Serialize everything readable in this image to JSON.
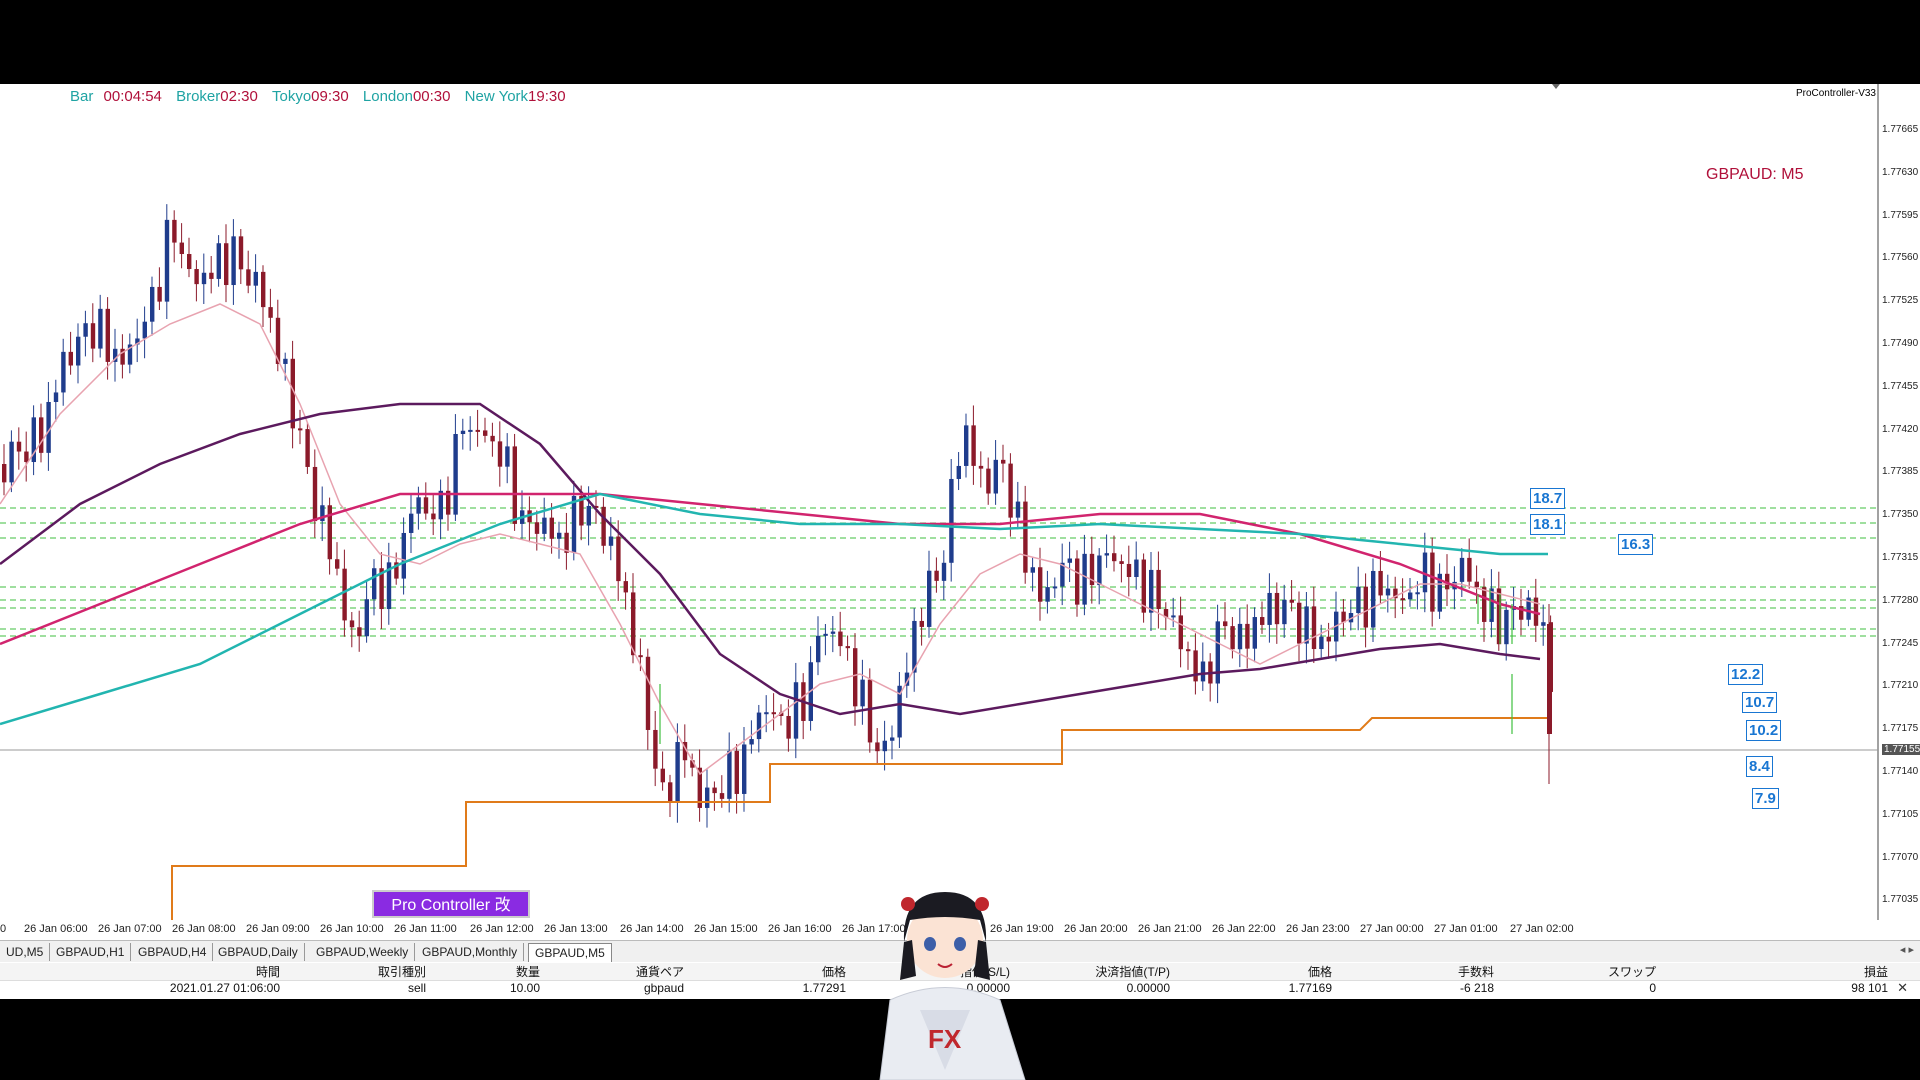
{
  "topbar": {
    "bar_label": "Bar",
    "bar_value": "00:04:54",
    "broker_label": "Broker",
    "broker_value": "02:30",
    "tokyo_label": "Tokyo",
    "tokyo_value": "09:30",
    "london_label": "London",
    "london_value": "00:30",
    "newyork_label": "New York",
    "newyork_value": "19:30"
  },
  "indicator_tag": "ProController-V33",
  "symbol_label": "GBPAUD: M5",
  "pro_controller_button": "Pro Controller 改",
  "pip_boxes": [
    "18.7",
    "18.1",
    "16.3",
    "12.2",
    "10.7",
    "10.2",
    "8.4",
    "7.9"
  ],
  "price_axis": [
    "1.77665",
    "1.77630",
    "1.77595",
    "1.77560",
    "1.77525",
    "1.77490",
    "1.77455",
    "1.77420",
    "1.77385",
    "1.77350",
    "1.77315",
    "1.77280",
    "1.77245",
    "1.77210",
    "1.77175",
    "1.77155",
    "1.77140",
    "1.77105",
    "1.77070",
    "1.77035"
  ],
  "current_price": "1.77155",
  "time_axis": [
    "0",
    "26 Jan 06:00",
    "26 Jan 07:00",
    "26 Jan 08:00",
    "26 Jan 09:00",
    "26 Jan 10:00",
    "26 Jan 11:00",
    "26 Jan 12:00",
    "26 Jan 13:00",
    "26 Jan 14:00",
    "26 Jan 15:00",
    "26 Jan 16:00",
    "26 Jan 17:00",
    "26 Jan 19:00",
    "26 Jan 20:00",
    "26 Jan 21:00",
    "26 Jan 22:00",
    "26 Jan 23:00",
    "27 Jan 00:00",
    "27 Jan 01:00",
    "27 Jan 02:00"
  ],
  "tabs": [
    "UD,M5",
    "GBPAUD,H1",
    "GBPAUD,H4",
    "GBPAUD,Daily",
    "GBPAUD,Weekly",
    "GBPAUD,Monthly",
    "GBPAUD,M5"
  ],
  "active_tab": "GBPAUD,M5",
  "trade_table": {
    "headers": {
      "time": "時間",
      "type": "取引種別",
      "volume": "数量",
      "pair": "通貨ペア",
      "price": "価格",
      "sl": "指値(S/L)",
      "tp": "決済指値(T/P)",
      "cur_price": "価格",
      "commission": "手数料",
      "swap": "スワップ",
      "profit": "損益"
    },
    "row": {
      "time": "2021.01.27 01:06:00",
      "type": "sell",
      "volume": "10.00",
      "pair": "gbpaud",
      "price": "1.77291",
      "sl": "0.00000",
      "tp": "0.00000",
      "cur_price": "1.77169",
      "commission": "-6 218",
      "swap": "0",
      "profit": "98 101"
    }
  },
  "avatar_shirt_text": "FX",
  "colors": {
    "bull": "#1f3c8c",
    "bear": "#8b1a2a",
    "ma_purple": "#5c1a5e",
    "ma_magenta": "#d1246e",
    "ma_teal": "#22b5b0",
    "ma_pink": "#e8a3b0",
    "level_orange": "#e07b1a",
    "grid_green": "#3fbf3f"
  }
}
